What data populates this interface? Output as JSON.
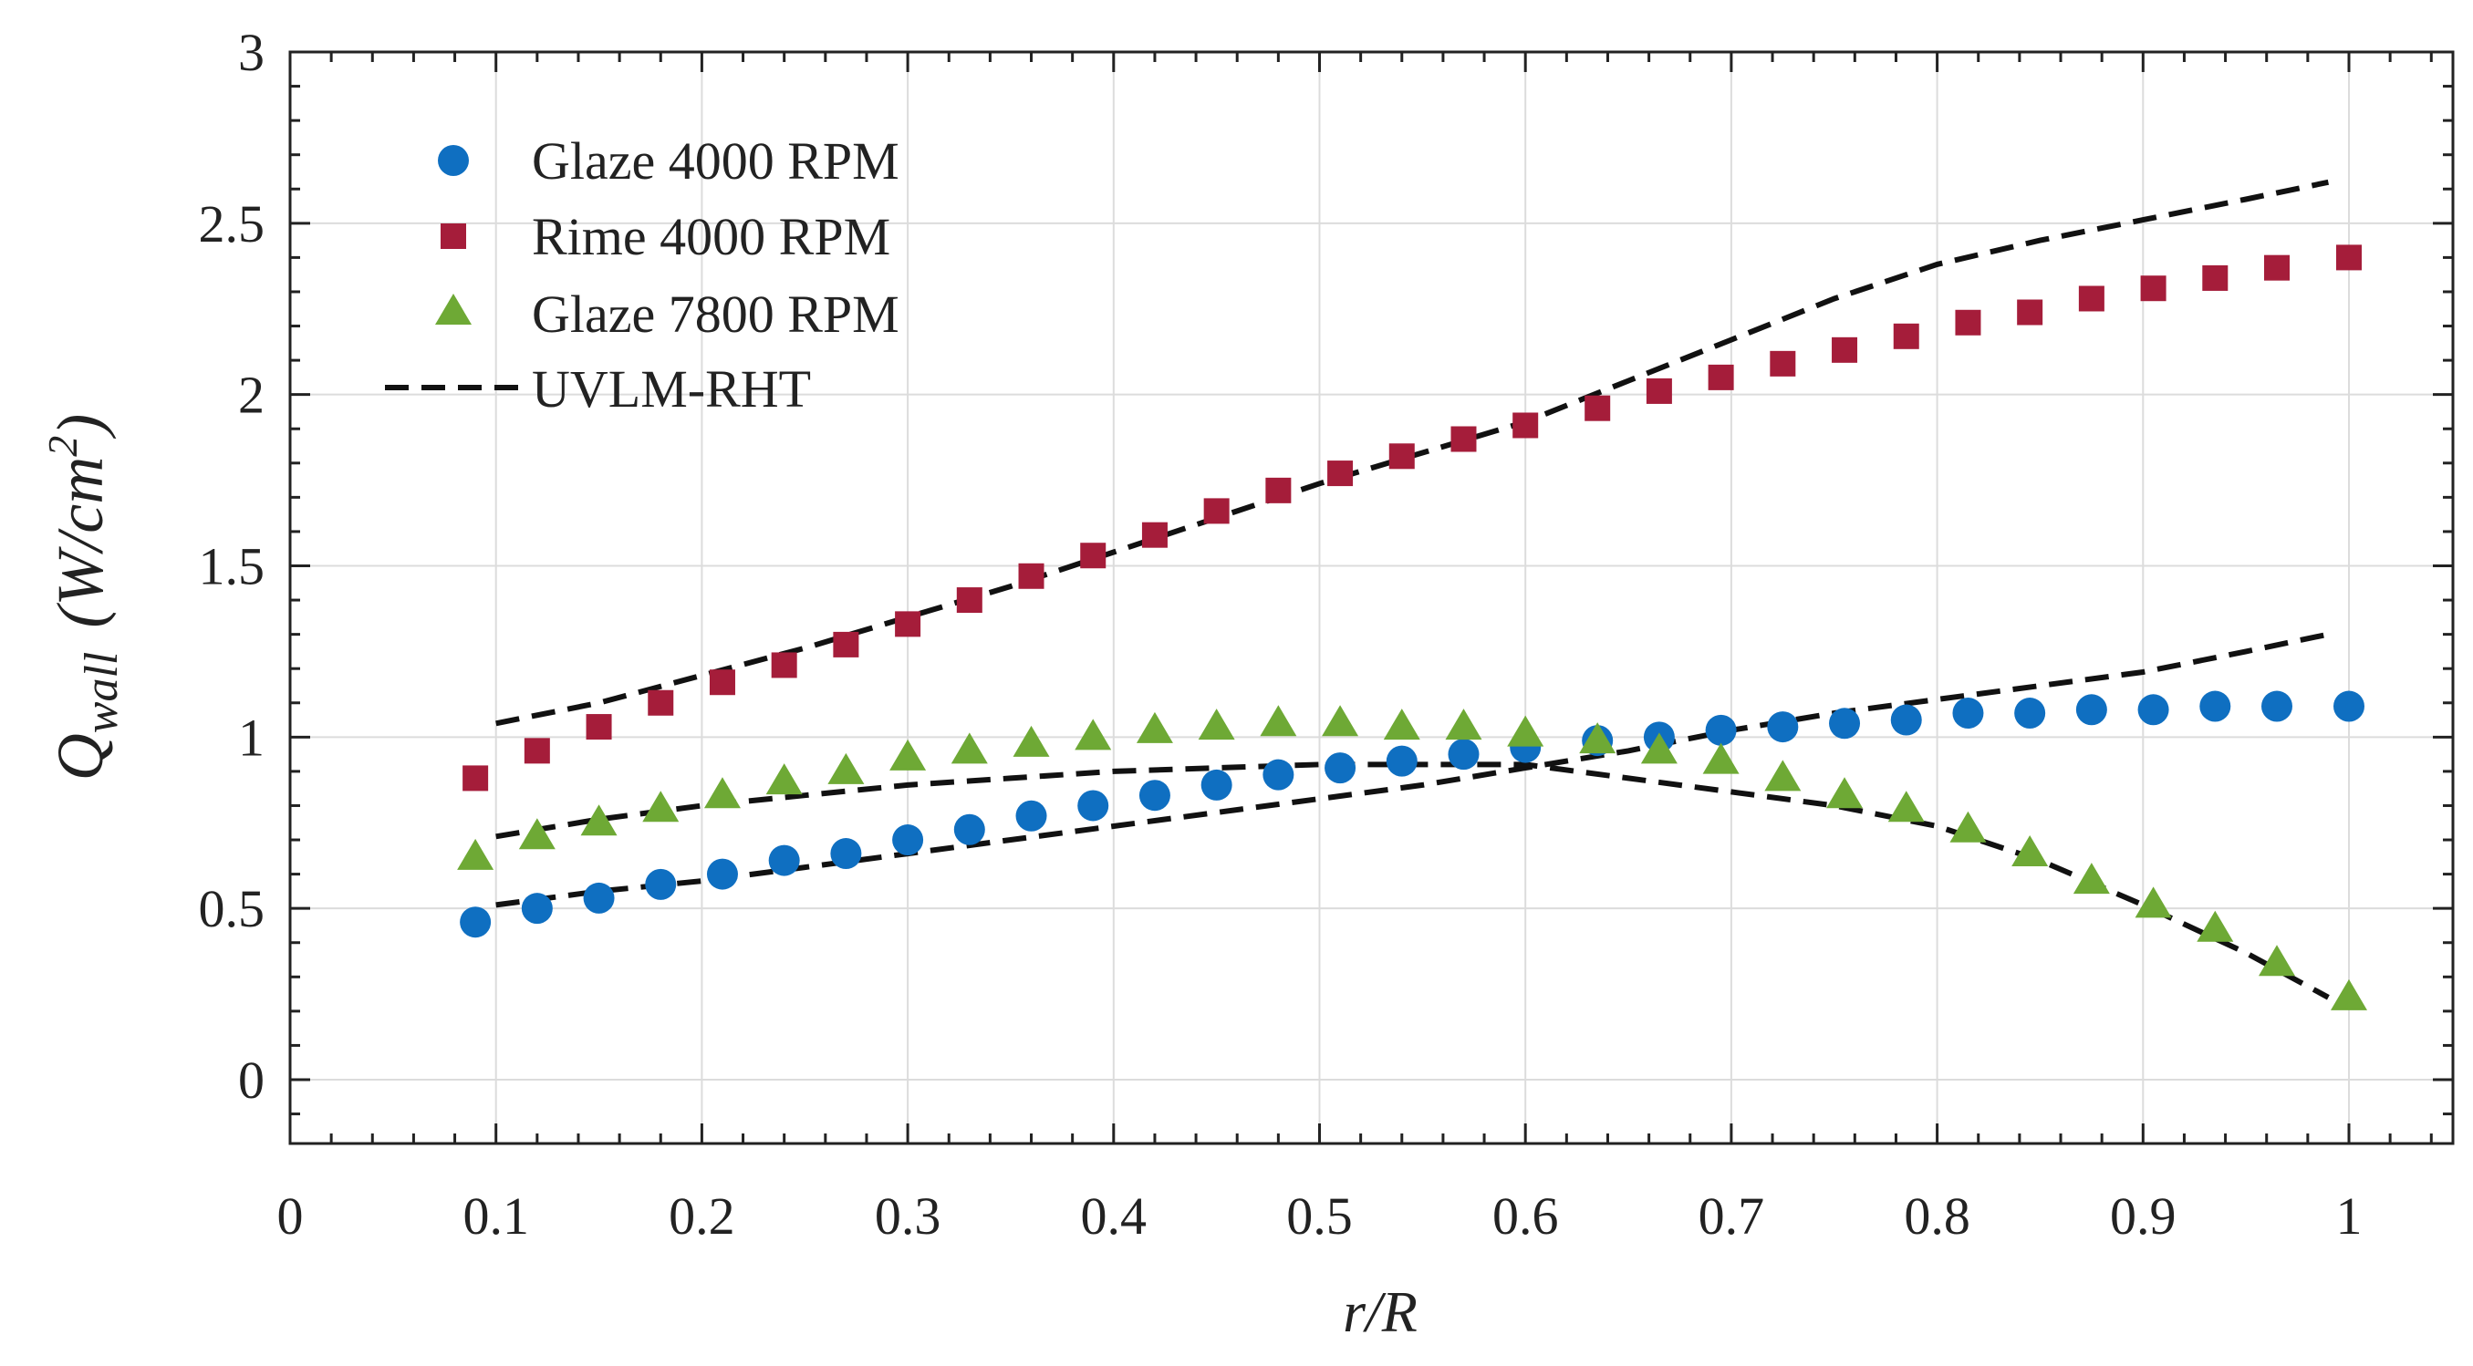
{
  "chart_data": {
    "type": "scatter",
    "title": "",
    "xlabel": "r/R",
    "ylabel": {
      "main": "Q",
      "sub": "wall",
      "unit_open": "(W/cm",
      "unit_sup": "2",
      "unit_close": ")"
    },
    "xlim": [
      0,
      1.05
    ],
    "ylim": [
      -0.2,
      3
    ],
    "xticks": [
      0,
      0.1,
      0.2,
      0.3,
      0.4,
      0.5,
      0.6,
      0.7,
      0.8,
      0.9,
      1
    ],
    "yticks": [
      0,
      0.5,
      1,
      1.5,
      2,
      2.5,
      3
    ],
    "xtick_labels": [
      "0",
      "0.1",
      "0.2",
      "0.3",
      "0.4",
      "0.5",
      "0.6",
      "0.7",
      "0.8",
      "0.9",
      "1"
    ],
    "ytick_labels": [
      "0",
      "0.5",
      "1",
      "1.5",
      "2",
      "2.5",
      "3"
    ],
    "grid": true,
    "legend_position": "top-left",
    "colors": {
      "glaze4000": "#0f6fc1",
      "rime4000": "#a51d3a",
      "glaze7800": "#6ea935",
      "uvlm": "#111111"
    },
    "series": [
      {
        "name": "Glaze 4000 RPM",
        "marker": "circle",
        "color_key": "glaze4000",
        "x": [
          0.09,
          0.12,
          0.15,
          0.18,
          0.21,
          0.24,
          0.27,
          0.3,
          0.33,
          0.36,
          0.39,
          0.42,
          0.45,
          0.48,
          0.51,
          0.54,
          0.57,
          0.6,
          0.635,
          0.665,
          0.695,
          0.725,
          0.755,
          0.785,
          0.815,
          0.845,
          0.875,
          0.905,
          0.935,
          0.965,
          1.0
        ],
        "y": [
          0.46,
          0.5,
          0.53,
          0.57,
          0.6,
          0.64,
          0.66,
          0.7,
          0.73,
          0.77,
          0.8,
          0.83,
          0.86,
          0.89,
          0.91,
          0.93,
          0.95,
          0.97,
          0.99,
          1.0,
          1.02,
          1.03,
          1.04,
          1.05,
          1.07,
          1.07,
          1.08,
          1.08,
          1.09,
          1.09,
          1.09
        ]
      },
      {
        "name": "Rime 4000 RPM",
        "marker": "square",
        "color_key": "rime4000",
        "x": [
          0.09,
          0.12,
          0.15,
          0.18,
          0.21,
          0.24,
          0.27,
          0.3,
          0.33,
          0.36,
          0.39,
          0.42,
          0.45,
          0.48,
          0.51,
          0.54,
          0.57,
          0.6,
          0.635,
          0.665,
          0.695,
          0.725,
          0.755,
          0.785,
          0.815,
          0.845,
          0.875,
          0.905,
          0.935,
          0.965,
          1.0
        ],
        "y": [
          0.88,
          0.96,
          1.03,
          1.1,
          1.16,
          1.21,
          1.27,
          1.33,
          1.4,
          1.47,
          1.53,
          1.59,
          1.66,
          1.72,
          1.77,
          1.82,
          1.87,
          1.91,
          1.96,
          2.01,
          2.05,
          2.09,
          2.13,
          2.17,
          2.21,
          2.24,
          2.28,
          2.31,
          2.34,
          2.37,
          2.4
        ]
      },
      {
        "name": "Glaze 7800 RPM",
        "marker": "triangle",
        "color_key": "glaze7800",
        "x": [
          0.09,
          0.12,
          0.15,
          0.18,
          0.21,
          0.24,
          0.27,
          0.3,
          0.33,
          0.36,
          0.39,
          0.42,
          0.45,
          0.48,
          0.51,
          0.54,
          0.57,
          0.6,
          0.635,
          0.665,
          0.695,
          0.725,
          0.755,
          0.785,
          0.815,
          0.845,
          0.875,
          0.905,
          0.935,
          0.965,
          1.0
        ],
        "y": [
          0.65,
          0.71,
          0.75,
          0.79,
          0.83,
          0.87,
          0.9,
          0.94,
          0.96,
          0.98,
          1.0,
          1.02,
          1.03,
          1.04,
          1.04,
          1.03,
          1.03,
          1.01,
          0.99,
          0.96,
          0.93,
          0.88,
          0.83,
          0.79,
          0.73,
          0.66,
          0.58,
          0.51,
          0.44,
          0.34,
          0.24
        ]
      },
      {
        "name": "UVLM-RHT",
        "marker": "dashed-line",
        "color_key": "uvlm",
        "curves": [
          {
            "x": [
              0.1,
              0.15,
              0.2,
              0.25,
              0.3,
              0.35,
              0.4,
              0.45,
              0.5,
              0.55,
              0.6,
              0.65,
              0.7,
              0.75,
              0.8,
              0.85,
              0.9,
              0.95,
              0.99
            ],
            "y": [
              1.04,
              1.1,
              1.18,
              1.26,
              1.35,
              1.44,
              1.54,
              1.64,
              1.74,
              1.83,
              1.92,
              2.04,
              2.16,
              2.28,
              2.38,
              2.45,
              2.51,
              2.57,
              2.62
            ]
          },
          {
            "x": [
              0.1,
              0.15,
              0.2,
              0.25,
              0.3,
              0.35,
              0.4,
              0.45,
              0.5,
              0.55,
              0.6,
              0.65,
              0.7,
              0.75,
              0.8,
              0.85,
              0.9,
              0.95,
              0.99
            ],
            "y": [
              0.51,
              0.55,
              0.58,
              0.62,
              0.66,
              0.7,
              0.74,
              0.78,
              0.82,
              0.86,
              0.91,
              0.96,
              1.02,
              1.07,
              1.11,
              1.15,
              1.19,
              1.25,
              1.3
            ]
          },
          {
            "x": [
              0.1,
              0.15,
              0.2,
              0.25,
              0.3,
              0.35,
              0.4,
              0.45,
              0.5,
              0.55,
              0.6,
              0.65,
              0.7,
              0.75,
              0.8,
              0.85,
              0.9,
              0.95,
              0.99
            ],
            "y": [
              0.71,
              0.76,
              0.8,
              0.83,
              0.86,
              0.88,
              0.9,
              0.91,
              0.92,
              0.92,
              0.92,
              0.88,
              0.84,
              0.8,
              0.74,
              0.64,
              0.51,
              0.37,
              0.24
            ]
          }
        ]
      }
    ]
  }
}
